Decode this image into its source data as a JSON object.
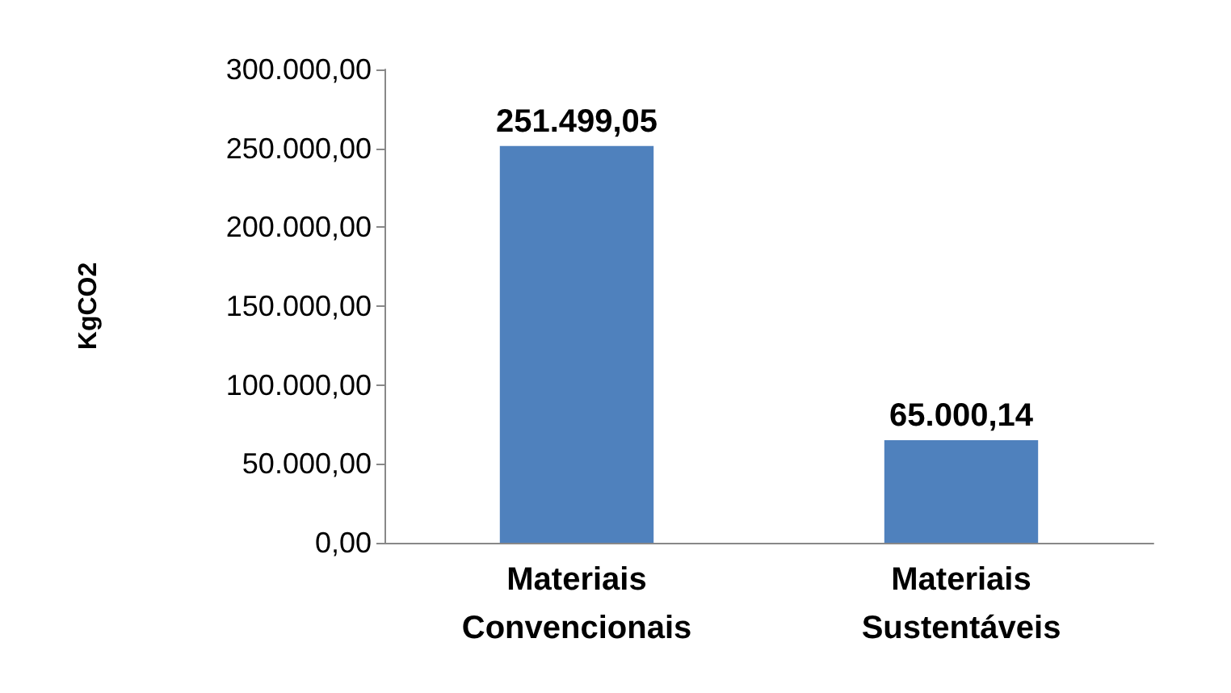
{
  "chart_data": {
    "type": "bar",
    "ylabel": "KgCO2",
    "categories": [
      "Materiais Convencionais",
      "Materiais Sustentáveis"
    ],
    "values": [
      251499.05,
      65000.14
    ],
    "value_labels": [
      "251.499,05",
      "65.000,14"
    ],
    "color": "#4f81bd",
    "grid": false,
    "ylim": [
      0,
      300000
    ],
    "yticks": [
      {
        "value": 0,
        "label": "0,00"
      },
      {
        "value": 50000,
        "label": "50.000,00"
      },
      {
        "value": 100000,
        "label": "100.000,00"
      },
      {
        "value": 150000,
        "label": "150.000,00"
      },
      {
        "value": 200000,
        "label": "200.000,00"
      },
      {
        "value": 250000,
        "label": "250.000,00"
      },
      {
        "value": 300000,
        "label": "300.000,00"
      }
    ]
  }
}
